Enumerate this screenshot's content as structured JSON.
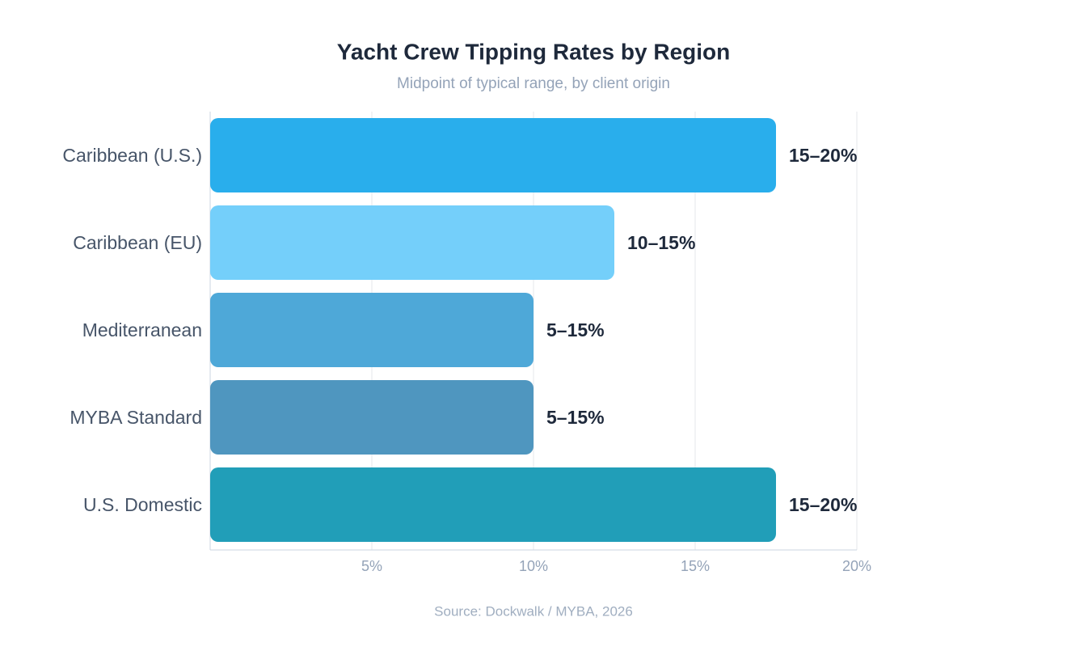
{
  "chart_data": {
    "type": "bar",
    "orientation": "horizontal",
    "title": "Yacht Crew Tipping Rates by Region",
    "subtitle": "Midpoint of typical range, by client origin",
    "source": "Source: Dockwalk / MYBA, 2026",
    "categories": [
      "Caribbean (U.S.)",
      "Caribbean (EU)",
      "Mediterranean",
      "MYBA Standard",
      "U.S. Domestic"
    ],
    "values": [
      17.5,
      12.5,
      10,
      10,
      17.5
    ],
    "value_labels": [
      "15–20%",
      "10–15%",
      "5–15%",
      "5–15%",
      "15–20%"
    ],
    "colors": [
      "#29aeec",
      "#74cffa",
      "#4ea8d8",
      "#4f96bf",
      "#219eb8"
    ],
    "xlim": [
      0,
      20
    ],
    "xticks": [
      {
        "value": 5,
        "label": "5%"
      },
      {
        "value": 10,
        "label": "10%"
      },
      {
        "value": 15,
        "label": "15%"
      },
      {
        "value": 20,
        "label": "20%"
      }
    ],
    "grid": true
  }
}
